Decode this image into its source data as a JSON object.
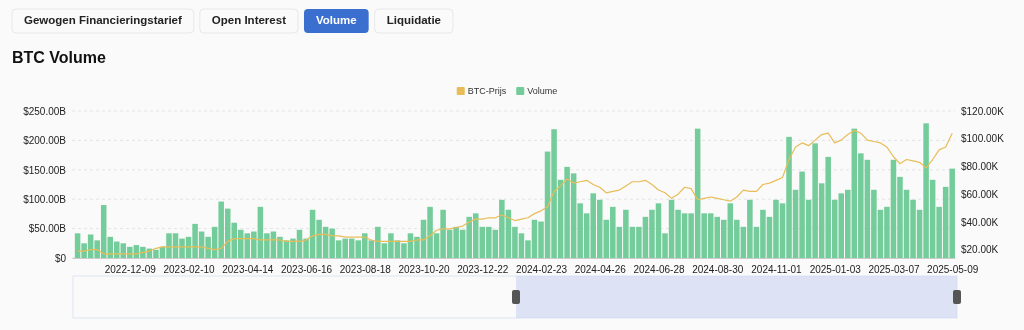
{
  "chart_data": {
    "type": "bar",
    "title": "BTC Volume",
    "legend": "top",
    "grid": "y",
    "annotations": [
      "Gewogen Financieringstarief",
      "Open Interest",
      "Volume",
      "Liquidatie"
    ],
    "x": [
      "2022-10-14",
      "2022-10-21",
      "2022-10-28",
      "2022-11-04",
      "2022-11-11",
      "2022-11-18",
      "2022-11-25",
      "2022-12-02",
      "2022-12-09",
      "2022-12-16",
      "2022-12-23",
      "2022-12-30",
      "2023-01-06",
      "2023-01-13",
      "2023-01-20",
      "2023-01-27",
      "2023-02-03",
      "2023-02-10",
      "2023-02-17",
      "2023-02-24",
      "2023-03-03",
      "2023-03-10",
      "2023-03-17",
      "2023-03-24",
      "2023-03-31",
      "2023-04-07",
      "2023-04-14",
      "2023-04-21",
      "2023-04-28",
      "2023-05-05",
      "2023-05-12",
      "2023-05-19",
      "2023-05-26",
      "2023-06-02",
      "2023-06-09",
      "2023-06-16",
      "2023-06-23",
      "2023-06-30",
      "2023-07-07",
      "2023-07-14",
      "2023-07-21",
      "2023-07-28",
      "2023-08-04",
      "2023-08-11",
      "2023-08-18",
      "2023-08-25",
      "2023-09-01",
      "2023-09-08",
      "2023-09-15",
      "2023-09-22",
      "2023-09-29",
      "2023-10-06",
      "2023-10-13",
      "2023-10-20",
      "2023-10-27",
      "2023-11-03",
      "2023-11-10",
      "2023-11-17",
      "2023-11-24",
      "2023-12-01",
      "2023-12-08",
      "2023-12-15",
      "2023-12-22",
      "2023-12-29",
      "2024-01-05",
      "2024-01-12",
      "2024-01-19",
      "2024-01-26",
      "2024-02-02",
      "2024-02-09",
      "2024-02-16",
      "2024-02-23",
      "2024-03-01",
      "2024-03-08",
      "2024-03-15",
      "2024-03-22",
      "2024-03-29",
      "2024-04-05",
      "2024-04-12",
      "2024-04-19",
      "2024-04-26",
      "2024-05-03",
      "2024-05-10",
      "2024-05-17",
      "2024-05-24",
      "2024-05-31",
      "2024-06-07",
      "2024-06-14",
      "2024-06-21",
      "2024-06-28",
      "2024-07-05",
      "2024-07-12",
      "2024-07-19",
      "2024-07-26",
      "2024-08-02",
      "2024-08-09",
      "2024-08-16",
      "2024-08-23",
      "2024-08-30",
      "2024-09-06",
      "2024-09-13",
      "2024-09-20",
      "2024-09-27",
      "2024-10-04",
      "2024-10-11",
      "2024-10-18",
      "2024-10-25",
      "2024-11-01",
      "2024-11-08",
      "2024-11-15",
      "2024-11-22",
      "2024-11-29",
      "2024-12-06",
      "2024-12-13",
      "2024-12-20",
      "2024-12-27",
      "2025-01-03",
      "2025-01-10",
      "2025-01-17",
      "2025-01-24",
      "2025-01-31",
      "2025-02-07",
      "2025-02-14",
      "2025-02-21",
      "2025-02-28",
      "2025-03-07",
      "2025-03-14",
      "2025-03-21",
      "2025-03-28",
      "2025-04-04",
      "2025-04-11",
      "2025-04-18",
      "2025-04-25",
      "2025-05-02",
      "2025-05-09"
    ],
    "xlim": [
      "2022-10-08",
      "2025-05-12"
    ],
    "xticks": [
      {
        "value": "2022-12-09",
        "label": "2022-12-09"
      },
      {
        "value": "2023-02-10",
        "label": "2023-02-10"
      },
      {
        "value": "2023-04-14",
        "label": "2023-04-14"
      },
      {
        "value": "2023-06-16",
        "label": "2023-06-16"
      },
      {
        "value": "2023-08-18",
        "label": "2023-08-18"
      },
      {
        "value": "2023-10-20",
        "label": "2023-10-20"
      },
      {
        "value": "2023-12-22",
        "label": "2023-12-22"
      },
      {
        "value": "2024-02-23",
        "label": "2024-02-23"
      },
      {
        "value": "2024-04-26",
        "label": "2024-04-26"
      },
      {
        "value": "2024-06-28",
        "label": "2024-06-28"
      },
      {
        "value": "2024-08-30",
        "label": "2024-08-30"
      },
      {
        "value": "2024-11-01",
        "label": "2024-11-01"
      },
      {
        "value": "2025-01-03",
        "label": "2025-01-03"
      },
      {
        "value": "2025-03-07",
        "label": "2025-03-07"
      },
      {
        "value": "2025-05-09",
        "label": "2025-05-09"
      }
    ],
    "ylim": [
      0,
      250
    ],
    "yticks": [
      {
        "value": 0,
        "label": "$0"
      },
      {
        "value": 50,
        "label": "$50.00B"
      },
      {
        "value": 100,
        "label": "$100.00B"
      },
      {
        "value": 150,
        "label": "$150.00B"
      },
      {
        "value": 200,
        "label": "$200.00B"
      },
      {
        "value": 250,
        "label": "$250.00B"
      }
    ],
    "y2lim": [
      14,
      120
    ],
    "y2ticks": [
      {
        "value": 20,
        "label": "$20.00K"
      },
      {
        "value": 40,
        "label": "$40.00K"
      },
      {
        "value": 60,
        "label": "$60.00K"
      },
      {
        "value": 80,
        "label": "$80.00K"
      },
      {
        "value": 100,
        "label": "$100.00K"
      },
      {
        "value": 120,
        "label": "$120.00K"
      }
    ],
    "series": [
      {
        "name": "BTC-Prijs",
        "type": "line",
        "axis": "y2",
        "color": "#e8bd58",
        "values": [
          19,
          19,
          20,
          20,
          17,
          17,
          17,
          17,
          17,
          17,
          18,
          19,
          21,
          22,
          22,
          22,
          22,
          22,
          22,
          22,
          21,
          20,
          21,
          26,
          28,
          28,
          28,
          28,
          27,
          27,
          27,
          27,
          26,
          26,
          26,
          27,
          30,
          31,
          31,
          30,
          30,
          29,
          29,
          29,
          29,
          27,
          26,
          26,
          26,
          26,
          26,
          26,
          27,
          27,
          30,
          34,
          35,
          35,
          36,
          37,
          40,
          42,
          42,
          43,
          43,
          45,
          43,
          41,
          42,
          43,
          46,
          48,
          51,
          62,
          66,
          71,
          68,
          69,
          70,
          67,
          65,
          61,
          62,
          63,
          66,
          69,
          69,
          70,
          67,
          63,
          61,
          57,
          60,
          65,
          64,
          56,
          57,
          58,
          57,
          56,
          55,
          58,
          63,
          62,
          62,
          67,
          68,
          70,
          72,
          85,
          94,
          97,
          95,
          99,
          103,
          104,
          97,
          99,
          103,
          106,
          104,
          99,
          98,
          97,
          94,
          87,
          82,
          85,
          84,
          83,
          79,
          85,
          92,
          94,
          104
        ]
      },
      {
        "name": "Volume",
        "color": "#74cc9b",
        "values": [
          42,
          25,
          40,
          30,
          90,
          36,
          28,
          25,
          19,
          22,
          19,
          16,
          14,
          19,
          42,
          42,
          33,
          36,
          58,
          45,
          36,
          53,
          96,
          84,
          60,
          48,
          42,
          45,
          87,
          42,
          45,
          36,
          30,
          33,
          48,
          33,
          82,
          65,
          53,
          50,
          30,
          33,
          33,
          30,
          42,
          30,
          53,
          25,
          42,
          30,
          25,
          42,
          36,
          65,
          87,
          42,
          82,
          48,
          53,
          48,
          70,
          76,
          53,
          53,
          48,
          99,
          82,
          53,
          42,
          30,
          65,
          62,
          181,
          219,
          133,
          155,
          144,
          93,
          76,
          110,
          99,
          65,
          87,
          53,
          82,
          53,
          53,
          70,
          82,
          93,
          42,
          99,
          82,
          76,
          76,
          220,
          76,
          76,
          70,
          65,
          93,
          65,
          53,
          99,
          53,
          82,
          70,
          99,
          93,
          206,
          116,
          147,
          99,
          195,
          127,
          172,
          99,
          110,
          116,
          220,
          178,
          167,
          116,
          82,
          87,
          167,
          138,
          116,
          99,
          82,
          229,
          133,
          87,
          121,
          152
        ]
      }
    ]
  }
}
